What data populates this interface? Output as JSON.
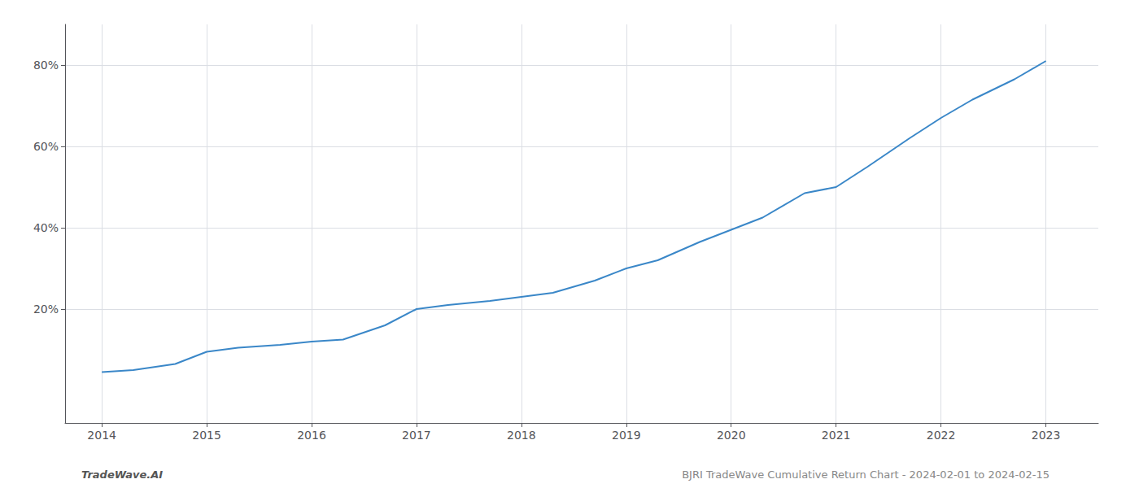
{
  "chart_data": {
    "type": "line",
    "x": [
      2014,
      2014.3,
      2014.7,
      2015,
      2015.3,
      2015.7,
      2016,
      2016.3,
      2016.7,
      2017,
      2017.3,
      2017.7,
      2018,
      2018.3,
      2018.7,
      2019,
      2019.3,
      2019.7,
      2020,
      2020.3,
      2020.7,
      2021,
      2021.3,
      2021.7,
      2022,
      2022.3,
      2022.7,
      2023
    ],
    "values": [
      4.5,
      5.0,
      6.5,
      9.5,
      10.5,
      11.2,
      12.0,
      12.5,
      16.0,
      20.0,
      21.0,
      22.0,
      23.0,
      24.0,
      27.0,
      30.0,
      32.0,
      36.5,
      39.5,
      42.5,
      48.5,
      50.0,
      55.0,
      62.0,
      67.0,
      71.5,
      76.5,
      81.0
    ],
    "color": "#3a87c8",
    "xlim": [
      2013.65,
      2023.5
    ],
    "xticks": [
      2014,
      2015,
      2016,
      2017,
      2018,
      2019,
      2020,
      2021,
      2022,
      2023
    ],
    "ylim": [
      -8,
      90
    ],
    "yticks": [
      {
        "value": 20,
        "label": "20%"
      },
      {
        "value": 40,
        "label": "40%"
      },
      {
        "value": 60,
        "label": "60%"
      },
      {
        "value": 80,
        "label": "80%"
      }
    ],
    "grid": true,
    "annotations": [
      "TradeWave.AI",
      "BJRI TradeWave Cumulative Return Chart - 2024-02-01 to 2024-02-15"
    ]
  }
}
